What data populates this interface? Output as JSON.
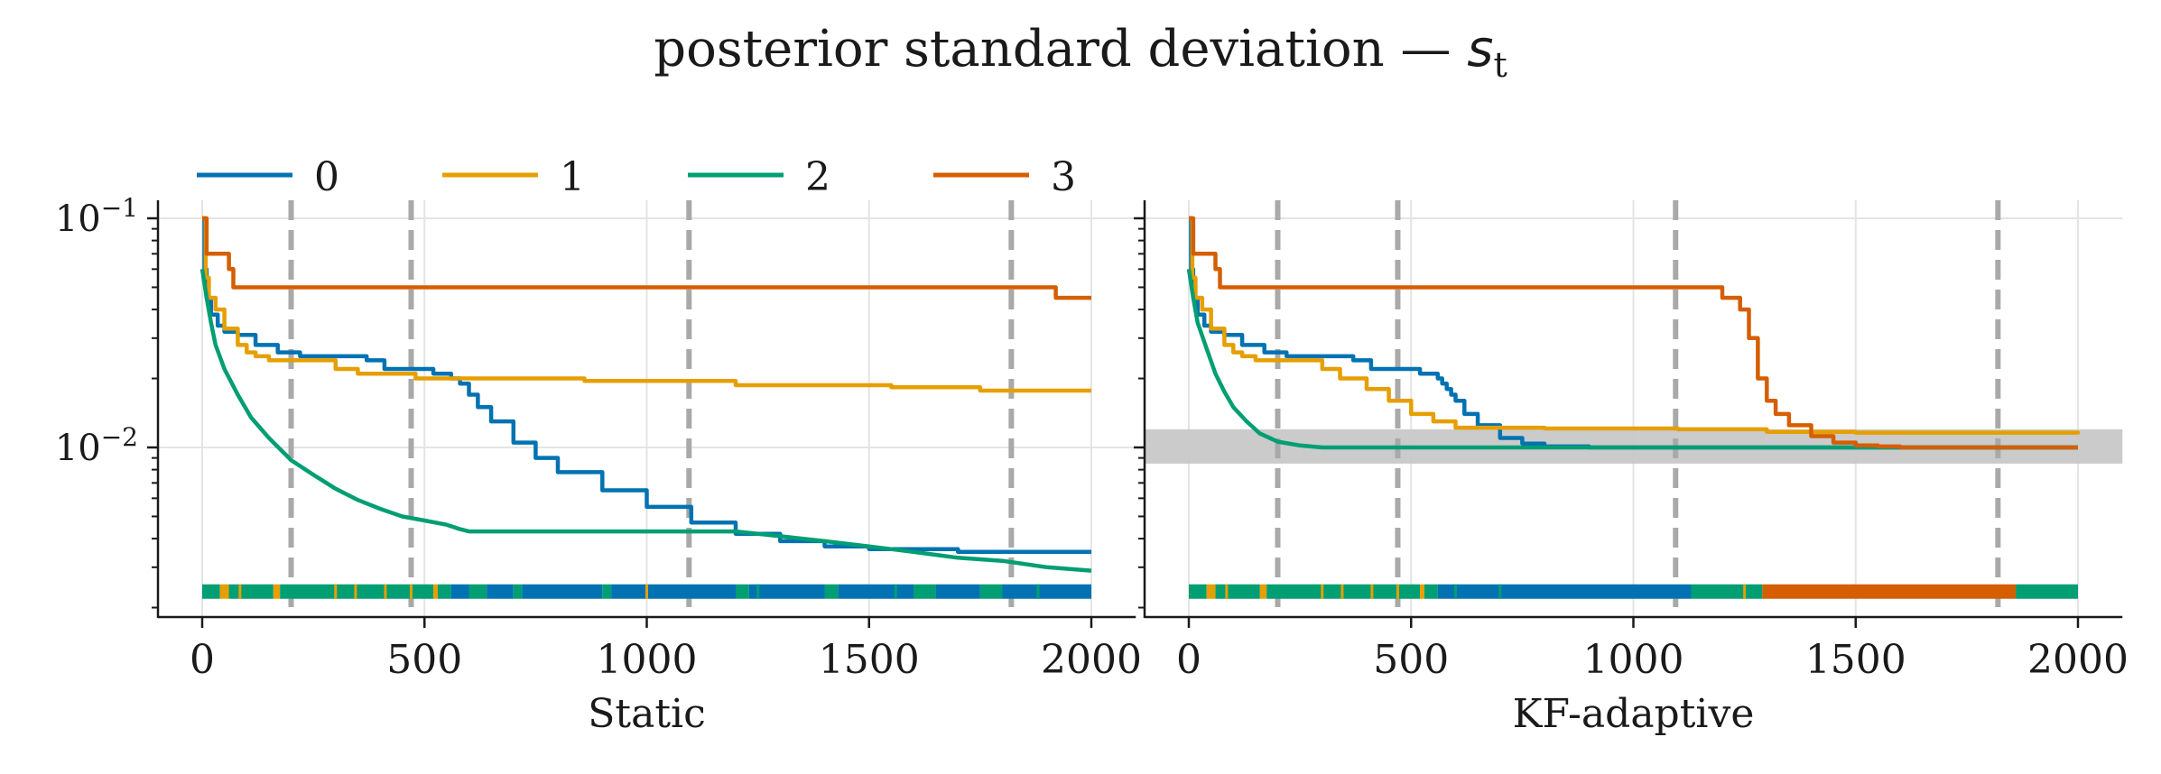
{
  "figure": {
    "title_prefix": "posterior standard deviation — ",
    "title_symbol": "s",
    "title_subscript": "t"
  },
  "colors": {
    "0": "#0072B2",
    "1": "#E69F00",
    "2": "#009E73",
    "3": "#D55E00",
    "vline": "#a9a9a9",
    "band": "#c8c8c8",
    "grid": "#e4e4e4",
    "axis": "#1a1a1a"
  },
  "legend": {
    "entries": [
      "0",
      "1",
      "2",
      "3"
    ]
  },
  "chart_data": [
    {
      "type": "line",
      "panel": "left",
      "xlabel": "Static",
      "ylabel": "",
      "yscale": "log",
      "xlim": [
        -100,
        2100
      ],
      "ylim": [
        0.0018,
        0.12
      ],
      "xticks": [
        0,
        500,
        1000,
        1500,
        2000
      ],
      "xtick_labels": [
        "0",
        "500",
        "1000",
        "1500",
        "2000"
      ],
      "yticks": [
        0.01,
        0.1
      ],
      "ytick_labels": [
        {
          "base": "10",
          "exp": "−2"
        },
        {
          "base": "10",
          "exp": "−1"
        }
      ],
      "grid": true,
      "vlines": [
        200,
        470,
        1095,
        1820
      ],
      "series": [
        {
          "name": "0",
          "step": true,
          "points": [
            [
              0,
              0.1
            ],
            [
              5,
              0.06
            ],
            [
              10,
              0.045
            ],
            [
              20,
              0.038
            ],
            [
              35,
              0.034
            ],
            [
              50,
              0.032
            ],
            [
              80,
              0.031
            ],
            [
              120,
              0.028
            ],
            [
              170,
              0.026
            ],
            [
              220,
              0.025
            ],
            [
              300,
              0.025
            ],
            [
              370,
              0.024
            ],
            [
              410,
              0.022
            ],
            [
              480,
              0.022
            ],
            [
              520,
              0.021
            ],
            [
              560,
              0.02
            ],
            [
              580,
              0.019
            ],
            [
              600,
              0.017
            ],
            [
              620,
              0.015
            ],
            [
              650,
              0.013
            ],
            [
              700,
              0.0105
            ],
            [
              750,
              0.009
            ],
            [
              800,
              0.0078
            ],
            [
              900,
              0.0065
            ],
            [
              1000,
              0.0055
            ],
            [
              1100,
              0.0047
            ],
            [
              1200,
              0.0042
            ],
            [
              1300,
              0.0039
            ],
            [
              1400,
              0.0037
            ],
            [
              1500,
              0.0036
            ],
            [
              1600,
              0.0036
            ],
            [
              1700,
              0.0035
            ],
            [
              1800,
              0.0035
            ],
            [
              2000,
              0.0035
            ]
          ]
        },
        {
          "name": "1",
          "step": true,
          "points": [
            [
              0,
              0.1
            ],
            [
              8,
              0.055
            ],
            [
              15,
              0.045
            ],
            [
              30,
              0.04
            ],
            [
              50,
              0.033
            ],
            [
              80,
              0.028
            ],
            [
              100,
              0.026
            ],
            [
              120,
              0.025
            ],
            [
              150,
              0.024
            ],
            [
              230,
              0.024
            ],
            [
              300,
              0.022
            ],
            [
              350,
              0.021
            ],
            [
              450,
              0.021
            ],
            [
              480,
              0.02
            ],
            [
              600,
              0.02
            ],
            [
              650,
              0.02
            ],
            [
              860,
              0.0195
            ],
            [
              1200,
              0.0187
            ],
            [
              1550,
              0.0183
            ],
            [
              1700,
              0.0183
            ],
            [
              1750,
              0.0177
            ],
            [
              2000,
              0.0177
            ]
          ]
        },
        {
          "name": "2",
          "step": false,
          "points": [
            [
              0,
              0.06
            ],
            [
              10,
              0.045
            ],
            [
              20,
              0.035
            ],
            [
              30,
              0.028
            ],
            [
              50,
              0.022
            ],
            [
              80,
              0.017
            ],
            [
              110,
              0.0135
            ],
            [
              150,
              0.011
            ],
            [
              200,
              0.0088
            ],
            [
              250,
              0.0076
            ],
            [
              300,
              0.0066
            ],
            [
              350,
              0.0059
            ],
            [
              400,
              0.0054
            ],
            [
              450,
              0.005
            ],
            [
              500,
              0.0048
            ],
            [
              550,
              0.0046
            ],
            [
              580,
              0.0044
            ],
            [
              600,
              0.0043
            ],
            [
              1200,
              0.0043
            ],
            [
              1300,
              0.0041
            ],
            [
              1400,
              0.0039
            ],
            [
              1500,
              0.0037
            ],
            [
              1600,
              0.0035
            ],
            [
              1700,
              0.0033
            ],
            [
              1800,
              0.0032
            ],
            [
              1900,
              0.003
            ],
            [
              2000,
              0.0029
            ]
          ]
        },
        {
          "name": "3",
          "step": true,
          "points": [
            [
              0,
              0.1
            ],
            [
              10,
              0.07
            ],
            [
              60,
              0.06
            ],
            [
              70,
              0.05
            ],
            [
              1910,
              0.05
            ],
            [
              1920,
              0.045
            ],
            [
              2000,
              0.045
            ]
          ]
        }
      ],
      "rug": {
        "y": 0.00235,
        "segments": [
          [
            0,
            40,
            "2"
          ],
          [
            40,
            60,
            "1"
          ],
          [
            60,
            160,
            "2"
          ],
          [
            160,
            175,
            "1"
          ],
          [
            175,
            520,
            "2"
          ],
          [
            520,
            530,
            "1"
          ],
          [
            530,
            560,
            "2"
          ],
          [
            560,
            600,
            "0"
          ],
          [
            600,
            640,
            "2"
          ],
          [
            640,
            700,
            "0"
          ],
          [
            700,
            720,
            "2"
          ],
          [
            720,
            900,
            "0"
          ],
          [
            900,
            920,
            "2"
          ],
          [
            920,
            1200,
            "0"
          ],
          [
            1200,
            1230,
            "2"
          ],
          [
            1230,
            1400,
            "0"
          ],
          [
            1400,
            1430,
            "2"
          ],
          [
            1430,
            1600,
            "0"
          ],
          [
            1600,
            1650,
            "2"
          ],
          [
            1650,
            1750,
            "0"
          ],
          [
            1750,
            1800,
            "2"
          ],
          [
            1800,
            2000,
            "0"
          ]
        ],
        "ticks": [
          [
            85,
            "1"
          ],
          [
            300,
            "1"
          ],
          [
            345,
            "1"
          ],
          [
            412,
            "1"
          ],
          [
            470,
            "1"
          ],
          [
            1000,
            "1"
          ],
          [
            1250,
            "2"
          ],
          [
            1560,
            "2"
          ],
          [
            1880,
            "2"
          ]
        ]
      }
    },
    {
      "type": "line",
      "panel": "right",
      "xlabel": "KF-adaptive",
      "ylabel": "",
      "yscale": "log",
      "xlim": [
        -100,
        2100
      ],
      "ylim": [
        0.0018,
        0.12
      ],
      "xticks": [
        0,
        500,
        1000,
        1500,
        2000
      ],
      "xtick_labels": [
        "0",
        "500",
        "1000",
        "1500",
        "2000"
      ],
      "yticks": [
        0.01,
        0.1
      ],
      "grid": true,
      "vlines": [
        200,
        470,
        1095,
        1820
      ],
      "band": [
        0.0085,
        0.012
      ],
      "series": [
        {
          "name": "0",
          "step": true,
          "points": [
            [
              0,
              0.1
            ],
            [
              5,
              0.06
            ],
            [
              10,
              0.045
            ],
            [
              20,
              0.038
            ],
            [
              35,
              0.034
            ],
            [
              50,
              0.032
            ],
            [
              80,
              0.031
            ],
            [
              120,
              0.028
            ],
            [
              170,
              0.026
            ],
            [
              220,
              0.025
            ],
            [
              300,
              0.025
            ],
            [
              370,
              0.024
            ],
            [
              410,
              0.022
            ],
            [
              480,
              0.022
            ],
            [
              520,
              0.021
            ],
            [
              540,
              0.021
            ],
            [
              560,
              0.02
            ],
            [
              570,
              0.019
            ],
            [
              580,
              0.018
            ],
            [
              590,
              0.017
            ],
            [
              600,
              0.016
            ],
            [
              620,
              0.014
            ],
            [
              650,
              0.0125
            ],
            [
              700,
              0.011
            ],
            [
              750,
              0.0104
            ],
            [
              800,
              0.0101
            ],
            [
              900,
              0.01
            ],
            [
              2000,
              0.01
            ]
          ]
        },
        {
          "name": "1",
          "step": true,
          "points": [
            [
              0,
              0.1
            ],
            [
              8,
              0.055
            ],
            [
              15,
              0.045
            ],
            [
              30,
              0.04
            ],
            [
              50,
              0.033
            ],
            [
              80,
              0.028
            ],
            [
              100,
              0.026
            ],
            [
              120,
              0.025
            ],
            [
              150,
              0.024
            ],
            [
              240,
              0.024
            ],
            [
              300,
              0.022
            ],
            [
              340,
              0.02
            ],
            [
              400,
              0.018
            ],
            [
              450,
              0.016
            ],
            [
              500,
              0.014
            ],
            [
              550,
              0.013
            ],
            [
              600,
              0.0122
            ],
            [
              800,
              0.0121
            ],
            [
              1000,
              0.0121
            ],
            [
              1100,
              0.012
            ],
            [
              1300,
              0.0117
            ],
            [
              1500,
              0.0116
            ],
            [
              1800,
              0.0116
            ],
            [
              2000,
              0.0114
            ]
          ]
        },
        {
          "name": "2",
          "step": false,
          "points": [
            [
              0,
              0.06
            ],
            [
              10,
              0.045
            ],
            [
              20,
              0.035
            ],
            [
              40,
              0.027
            ],
            [
              60,
              0.021
            ],
            [
              80,
              0.0175
            ],
            [
              100,
              0.015
            ],
            [
              130,
              0.013
            ],
            [
              160,
              0.0115
            ],
            [
              200,
              0.0106
            ],
            [
              250,
              0.0102
            ],
            [
              300,
              0.01
            ],
            [
              2000,
              0.01
            ]
          ]
        },
        {
          "name": "3",
          "step": true,
          "points": [
            [
              0,
              0.1
            ],
            [
              10,
              0.07
            ],
            [
              60,
              0.06
            ],
            [
              70,
              0.05
            ],
            [
              1180,
              0.05
            ],
            [
              1200,
              0.045
            ],
            [
              1240,
              0.04
            ],
            [
              1260,
              0.03
            ],
            [
              1280,
              0.02
            ],
            [
              1300,
              0.016
            ],
            [
              1320,
              0.014
            ],
            [
              1350,
              0.0125
            ],
            [
              1400,
              0.0112
            ],
            [
              1450,
              0.0105
            ],
            [
              1500,
              0.0102
            ],
            [
              1550,
              0.0101
            ],
            [
              1600,
              0.01
            ],
            [
              2000,
              0.01
            ]
          ]
        }
      ],
      "rug": {
        "y": 0.00235,
        "segments": [
          [
            0,
            40,
            "2"
          ],
          [
            40,
            60,
            "1"
          ],
          [
            60,
            160,
            "2"
          ],
          [
            160,
            175,
            "1"
          ],
          [
            175,
            520,
            "2"
          ],
          [
            520,
            530,
            "1"
          ],
          [
            530,
            560,
            "2"
          ],
          [
            560,
            1130,
            "0"
          ],
          [
            1130,
            1290,
            "2"
          ],
          [
            1290,
            1860,
            "3"
          ],
          [
            1860,
            2000,
            "2"
          ]
        ],
        "ticks": [
          [
            85,
            "1"
          ],
          [
            300,
            "1"
          ],
          [
            345,
            "1"
          ],
          [
            412,
            "1"
          ],
          [
            470,
            "1"
          ],
          [
            600,
            "2"
          ],
          [
            700,
            "2"
          ],
          [
            1250,
            "1"
          ]
        ]
      }
    }
  ]
}
